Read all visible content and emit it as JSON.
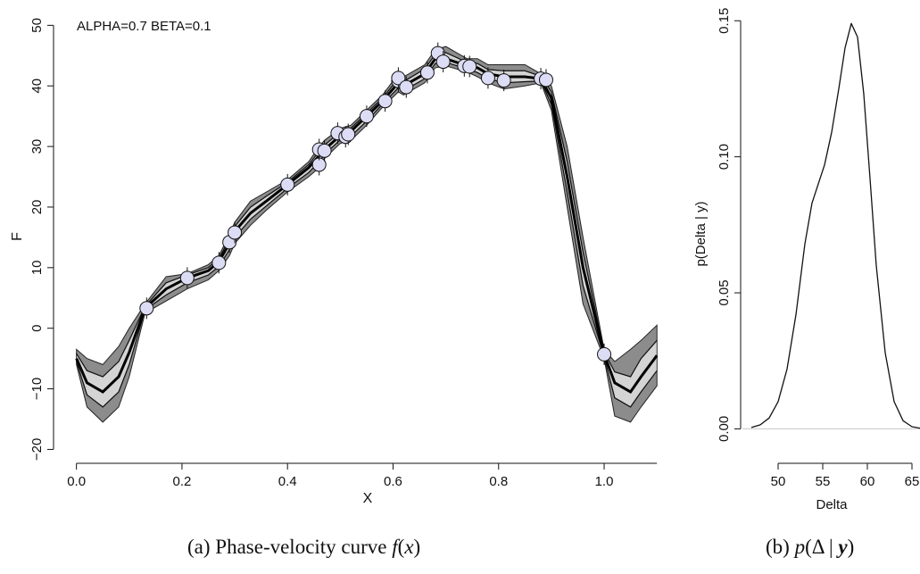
{
  "captions": {
    "a_label": "(a)",
    "a_text": "Phase-velocity curve",
    "a_fx": "f",
    "a_paren_open": "(",
    "a_x": "x",
    "a_paren_close": ")",
    "b_label": "(b)",
    "b_p": "p",
    "b_open": "(",
    "b_delta": "Δ",
    "b_bar": " | ",
    "b_y": "y",
    "b_close": ")"
  },
  "chart_data": [
    {
      "type": "line",
      "annotation": "ALPHA=0.7 BETA=0.1",
      "xlabel": "X",
      "ylabel": "F",
      "xlim": [
        -0.04,
        1.12
      ],
      "ylim": [
        -22,
        53
      ],
      "xticks": [
        0.0,
        0.2,
        0.4,
        0.6,
        0.8,
        1.0
      ],
      "xtick_labels": [
        "0.0",
        "0.2",
        "0.4",
        "0.6",
        "0.8",
        "1.0"
      ],
      "yticks": [
        -20,
        -10,
        0,
        10,
        20,
        30,
        40,
        50
      ],
      "ytick_labels": [
        "−20",
        "−10",
        "0",
        "10",
        "20",
        "30",
        "40",
        "50"
      ],
      "grid": false,
      "colors": {
        "outer_band": "#8c8c8c",
        "inner_band": "#d4d4d4",
        "line": "#000000",
        "point_fill": "#dcdcf5"
      },
      "series": [
        {
          "x": [
            0.0,
            0.02,
            0.05,
            0.08,
            0.1,
            0.13,
            0.17,
            0.21,
            0.25,
            0.27,
            0.29,
            0.3,
            0.33,
            0.36,
            0.4,
            0.44,
            0.46,
            0.47,
            0.5,
            0.52,
            0.55,
            0.58,
            0.61,
            0.62,
            0.66,
            0.68,
            0.7,
            0.74,
            0.76,
            0.78,
            0.81,
            0.85,
            0.88,
            0.9,
            0.93,
            0.96,
            1.0,
            1.02,
            1.05,
            1.07,
            1.1
          ],
          "y": [
            -5,
            -9,
            -10.5,
            -8,
            -4,
            3.3,
            6.5,
            8.3,
            9.5,
            11,
            14,
            16,
            19,
            21,
            23.7,
            26.5,
            28.5,
            29.5,
            31.8,
            32.5,
            35,
            37.5,
            40.5,
            40,
            42,
            44.5,
            44.5,
            43.3,
            43,
            42,
            41.5,
            41.5,
            41.2,
            38,
            25,
            10,
            -4.3,
            -9,
            -10.5,
            -8,
            -4.5
          ],
          "lower_outer": [
            -6,
            -13,
            -15.5,
            -13,
            -8,
            2.5,
            4.5,
            6.5,
            8,
            9.5,
            12,
            14,
            17,
            19.5,
            22.5,
            25,
            26.5,
            28,
            30.5,
            31,
            33.5,
            36.5,
            39,
            38.5,
            40.5,
            43,
            43.3,
            42.3,
            41.5,
            40.5,
            39.5,
            40,
            40.5,
            36,
            20,
            4,
            -5,
            -14.5,
            -15.5,
            -13,
            -9.5
          ],
          "upper_outer": [
            -3.5,
            -5,
            -6,
            -3,
            0,
            4,
            8.5,
            9,
            10.5,
            12,
            15.5,
            17.5,
            21,
            22.5,
            24.5,
            27.5,
            30,
            31,
            33,
            33.5,
            36,
            38.5,
            42,
            41.5,
            43.5,
            46,
            46.5,
            44.5,
            44.5,
            43.5,
            43.5,
            43.5,
            42,
            40,
            30,
            15,
            -3.5,
            -5.5,
            -3.5,
            -2,
            0.5
          ],
          "lower_inner": [
            -5.5,
            -11,
            -13,
            -10.5,
            -6,
            3,
            5.5,
            7.5,
            8.8,
            10.2,
            13,
            15,
            18,
            20.2,
            23.1,
            25.7,
            27.5,
            28.7,
            31.1,
            31.7,
            34.2,
            37,
            39.7,
            39.2,
            41.2,
            43.7,
            43.9,
            42.8,
            42.2,
            41.2,
            40.5,
            40.7,
            40.8,
            37,
            22.5,
            7,
            -4.7,
            -11.5,
            -13,
            -10.5,
            -7
          ],
          "upper_inner": [
            -4.2,
            -7,
            -8,
            -5.5,
            -2,
            3.6,
            7.5,
            8.8,
            10,
            11.5,
            14.8,
            16.8,
            20,
            21.8,
            24.1,
            27,
            29.2,
            30.2,
            32.4,
            33,
            35.5,
            38,
            41.2,
            40.7,
            42.8,
            45.2,
            45.5,
            43.9,
            43.7,
            42.7,
            42.5,
            42.5,
            41.6,
            39,
            27.5,
            12.5,
            -3.9,
            -7.2,
            -8,
            -5,
            -2
          ]
        }
      ],
      "points": [
        {
          "x": 0.133,
          "y": 3.3
        },
        {
          "x": 0.21,
          "y": 8.3
        },
        {
          "x": 0.27,
          "y": 10.8
        },
        {
          "x": 0.29,
          "y": 14.2
        },
        {
          "x": 0.3,
          "y": 15.8
        },
        {
          "x": 0.4,
          "y": 23.7
        },
        {
          "x": 0.46,
          "y": 27
        },
        {
          "x": 0.46,
          "y": 29.5
        },
        {
          "x": 0.47,
          "y": 29.3
        },
        {
          "x": 0.495,
          "y": 32.2
        },
        {
          "x": 0.51,
          "y": 31.6
        },
        {
          "x": 0.515,
          "y": 32
        },
        {
          "x": 0.55,
          "y": 35
        },
        {
          "x": 0.585,
          "y": 37.5
        },
        {
          "x": 0.61,
          "y": 40.8
        },
        {
          "x": 0.61,
          "y": 41.3
        },
        {
          "x": 0.625,
          "y": 39.8
        },
        {
          "x": 0.665,
          "y": 42.2
        },
        {
          "x": 0.685,
          "y": 45.4
        },
        {
          "x": 0.695,
          "y": 44
        },
        {
          "x": 0.735,
          "y": 43.3
        },
        {
          "x": 0.745,
          "y": 43.2
        },
        {
          "x": 0.78,
          "y": 41.3
        },
        {
          "x": 0.81,
          "y": 40.9
        },
        {
          "x": 0.88,
          "y": 41.2
        },
        {
          "x": 0.89,
          "y": 41
        },
        {
          "x": 1.0,
          "y": -4.3
        }
      ]
    },
    {
      "type": "line",
      "xlabel": "Delta",
      "ylabel": "p(Delta | y)",
      "xlim": [
        46,
        66
      ],
      "ylim": [
        -0.012,
        0.155
      ],
      "xticks": [
        50,
        55,
        60,
        65
      ],
      "xtick_labels": [
        "50",
        "55",
        "60",
        "65"
      ],
      "yticks": [
        0.0,
        0.05,
        0.1,
        0.15
      ],
      "ytick_labels": [
        "0.00",
        "0.05",
        "0.10",
        "0.15"
      ],
      "grid": false,
      "series": [
        {
          "x": [
            47,
            48,
            49,
            50,
            51,
            52,
            53,
            53.8,
            54.5,
            55.2,
            56,
            56.8,
            57.5,
            58.2,
            58.9,
            59.6,
            60.3,
            61,
            62,
            63,
            64,
            65,
            66
          ],
          "y": [
            0.0005,
            0.0015,
            0.004,
            0.01,
            0.022,
            0.042,
            0.068,
            0.083,
            0.09,
            0.097,
            0.109,
            0.125,
            0.14,
            0.149,
            0.144,
            0.123,
            0.092,
            0.06,
            0.028,
            0.01,
            0.003,
            0.0008,
            0.0002
          ]
        }
      ]
    }
  ]
}
